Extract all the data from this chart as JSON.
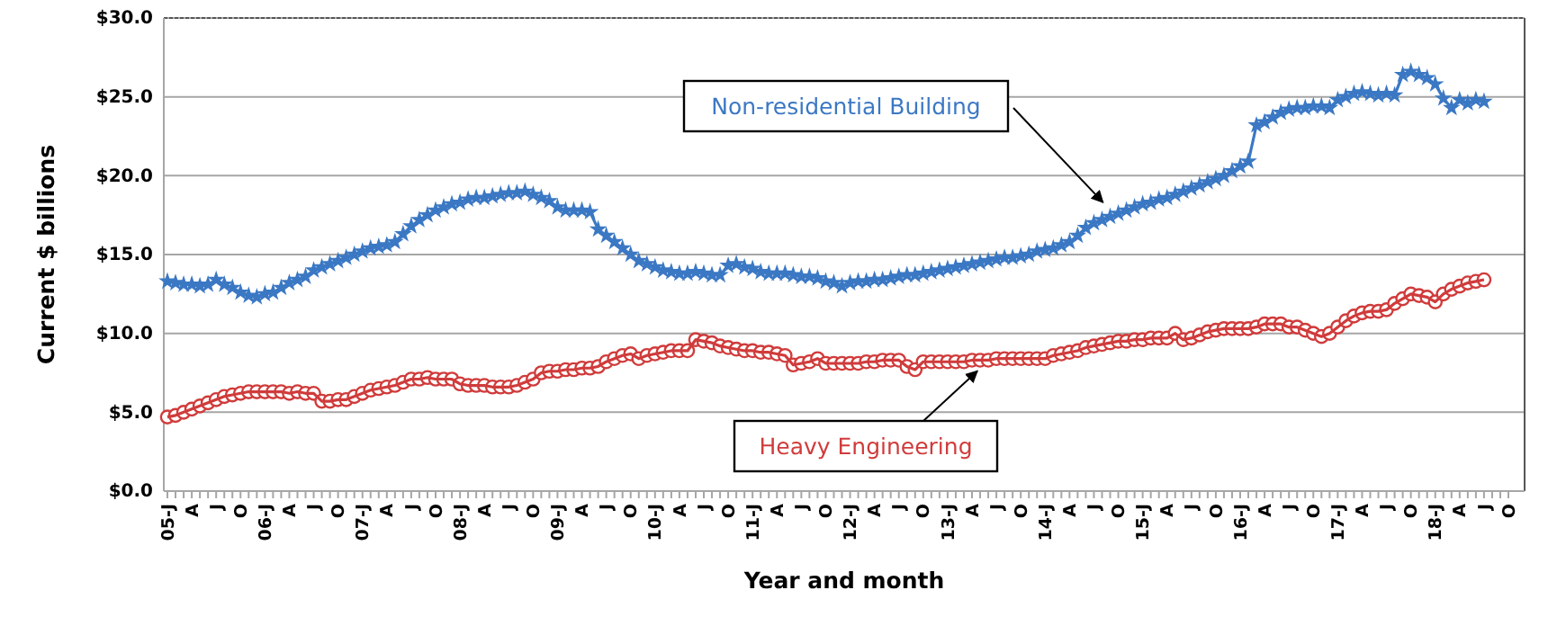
{
  "chart_data": {
    "type": "line",
    "xlabel": "Year and month",
    "ylabel": "Current $ billions",
    "ylim": [
      0,
      30
    ],
    "yticks": [
      {
        "value": 0,
        "label": "$0.0"
      },
      {
        "value": 5,
        "label": "$5.0"
      },
      {
        "value": 10,
        "label": "$10.0"
      },
      {
        "value": 15,
        "label": "$15.0"
      },
      {
        "value": 20,
        "label": "$20.0"
      },
      {
        "value": 25,
        "label": "$25.0"
      },
      {
        "value": 30,
        "label": "$30.0"
      }
    ],
    "grid": "y",
    "legend": false,
    "categories": [
      "05-J",
      null,
      null,
      "A",
      null,
      null,
      "J",
      null,
      null,
      "O",
      null,
      null,
      "06-J",
      null,
      null,
      "A",
      null,
      null,
      "J",
      null,
      null,
      "O",
      null,
      null,
      "07-J",
      null,
      null,
      "A",
      null,
      null,
      "J",
      null,
      null,
      "O",
      null,
      null,
      "08-J",
      null,
      null,
      "A",
      null,
      null,
      "J",
      null,
      null,
      "O",
      null,
      null,
      "09-J",
      null,
      null,
      "A",
      null,
      null,
      "J",
      null,
      null,
      "O",
      null,
      null,
      "10-J",
      null,
      null,
      "A",
      null,
      null,
      "J",
      null,
      null,
      "O",
      null,
      null,
      "11-J",
      null,
      null,
      "A",
      null,
      null,
      "J",
      null,
      null,
      "O",
      null,
      null,
      "12-J",
      null,
      null,
      "A",
      null,
      null,
      "J",
      null,
      null,
      "O",
      null,
      null,
      "13-J",
      null,
      null,
      "A",
      null,
      null,
      "J",
      null,
      null,
      "O",
      null,
      null,
      "14-J",
      null,
      null,
      "A",
      null,
      null,
      "J",
      null,
      null,
      "O",
      null,
      null,
      "15-J",
      null,
      null,
      "A",
      null,
      null,
      "J",
      null,
      null,
      "O",
      null,
      null,
      "16-J",
      null,
      null,
      "A",
      null,
      null,
      "J",
      null,
      null,
      "O",
      null,
      null,
      "17-J",
      null,
      null,
      "A",
      null,
      null,
      "J",
      null,
      null,
      "O",
      null,
      null,
      "18-J",
      null,
      null,
      "A",
      null,
      null,
      "J",
      null,
      null,
      "O"
    ],
    "series": [
      {
        "name": "Non-residential Building",
        "color": "#3b78c4",
        "marker": "star",
        "values": [
          13.3,
          13.2,
          13.1,
          13.1,
          13.0,
          13.1,
          13.4,
          13.1,
          12.9,
          12.6,
          12.4,
          12.3,
          12.5,
          12.6,
          12.9,
          13.2,
          13.4,
          13.6,
          14.0,
          14.2,
          14.4,
          14.6,
          14.8,
          15.0,
          15.2,
          15.4,
          15.5,
          15.6,
          15.8,
          16.3,
          16.8,
          17.2,
          17.5,
          17.8,
          18.0,
          18.2,
          18.3,
          18.5,
          18.6,
          18.6,
          18.7,
          18.8,
          18.9,
          18.9,
          19.0,
          18.8,
          18.6,
          18.4,
          18.0,
          17.8,
          17.8,
          17.8,
          17.7,
          16.6,
          16.2,
          15.8,
          15.4,
          15.0,
          14.6,
          14.4,
          14.2,
          14.0,
          13.9,
          13.8,
          13.8,
          13.9,
          13.8,
          13.7,
          13.7,
          14.3,
          14.4,
          14.2,
          14.1,
          13.9,
          13.8,
          13.8,
          13.8,
          13.7,
          13.6,
          13.6,
          13.5,
          13.3,
          13.2,
          13.0,
          13.2,
          13.3,
          13.3,
          13.4,
          13.4,
          13.5,
          13.6,
          13.7,
          13.7,
          13.8,
          13.9,
          14.0,
          14.1,
          14.2,
          14.3,
          14.4,
          14.5,
          14.6,
          14.7,
          14.8,
          14.8,
          14.9,
          15.0,
          15.2,
          15.3,
          15.4,
          15.6,
          15.8,
          16.2,
          16.7,
          17.0,
          17.2,
          17.4,
          17.6,
          17.8,
          18.0,
          18.2,
          18.3,
          18.5,
          18.6,
          18.8,
          19.0,
          19.2,
          19.4,
          19.6,
          19.8,
          20.0,
          20.3,
          20.6,
          20.9,
          23.2,
          23.4,
          23.7,
          24.0,
          24.2,
          24.3,
          24.3,
          24.4,
          24.4,
          24.3,
          24.8,
          25.0,
          25.2,
          25.3,
          25.2,
          25.1,
          25.2,
          25.1,
          26.4,
          26.6,
          26.4,
          26.2,
          25.8,
          24.9,
          24.3,
          24.8,
          24.6,
          24.8,
          24.7,
          null,
          null,
          null
        ]
      },
      {
        "name": "Heavy Engineering",
        "color": "#d03b3b",
        "marker": "circle",
        "values": [
          4.7,
          4.8,
          5.0,
          5.2,
          5.4,
          5.6,
          5.8,
          6.0,
          6.1,
          6.2,
          6.3,
          6.3,
          6.3,
          6.3,
          6.3,
          6.2,
          6.3,
          6.2,
          6.2,
          5.7,
          5.7,
          5.8,
          5.8,
          6.0,
          6.2,
          6.4,
          6.5,
          6.6,
          6.7,
          6.9,
          7.1,
          7.1,
          7.2,
          7.1,
          7.1,
          7.1,
          6.8,
          6.7,
          6.7,
          6.7,
          6.6,
          6.6,
          6.6,
          6.7,
          6.9,
          7.1,
          7.5,
          7.6,
          7.6,
          7.7,
          7.7,
          7.8,
          7.8,
          7.9,
          8.2,
          8.4,
          8.6,
          8.7,
          8.4,
          8.6,
          8.7,
          8.8,
          8.9,
          8.9,
          8.9,
          9.6,
          9.5,
          9.4,
          9.2,
          9.1,
          9.0,
          8.9,
          8.9,
          8.8,
          8.8,
          8.7,
          8.6,
          8.0,
          8.1,
          8.2,
          8.4,
          8.1,
          8.1,
          8.1,
          8.1,
          8.1,
          8.2,
          8.2,
          8.3,
          8.3,
          8.3,
          7.9,
          7.7,
          8.2,
          8.2,
          8.2,
          8.2,
          8.2,
          8.2,
          8.3,
          8.3,
          8.3,
          8.4,
          8.4,
          8.4,
          8.4,
          8.4,
          8.4,
          8.4,
          8.6,
          8.7,
          8.8,
          8.9,
          9.1,
          9.2,
          9.3,
          9.4,
          9.5,
          9.5,
          9.6,
          9.6,
          9.7,
          9.7,
          9.7,
          10.0,
          9.6,
          9.7,
          9.9,
          10.1,
          10.2,
          10.3,
          10.3,
          10.3,
          10.3,
          10.4,
          10.6,
          10.6,
          10.6,
          10.4,
          10.4,
          10.2,
          10.0,
          9.8,
          10.0,
          10.4,
          10.8,
          11.1,
          11.3,
          11.4,
          11.4,
          11.5,
          11.9,
          12.2,
          12.5,
          12.4,
          12.3,
          12.0,
          12.5,
          12.8,
          13.0,
          13.2,
          13.3,
          13.4,
          null,
          null,
          null
        ]
      }
    ]
  }
}
